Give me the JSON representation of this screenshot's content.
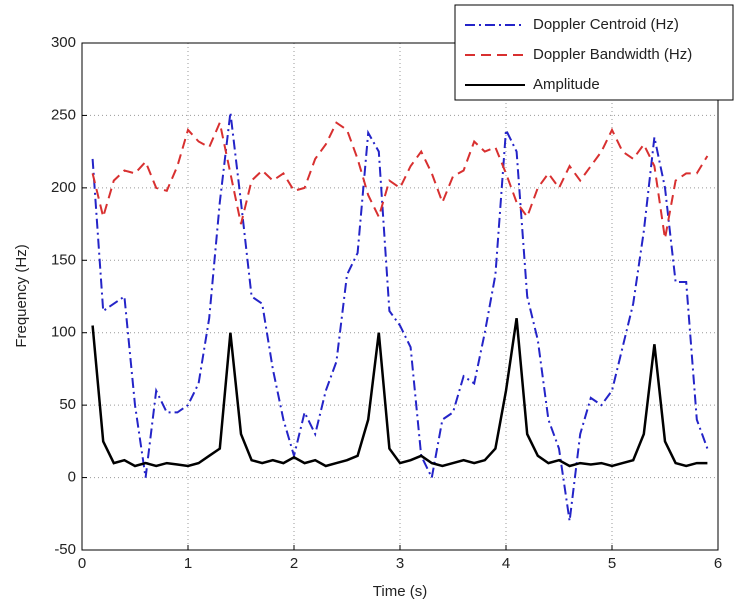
{
  "chart_data": {
    "type": "line",
    "xlabel": "Time (s)",
    "ylabel": "Frequency (Hz)",
    "x": [
      0.1,
      0.2,
      0.3,
      0.4,
      0.5,
      0.6,
      0.7,
      0.8,
      0.9,
      1.0,
      1.1,
      1.2,
      1.3,
      1.4,
      1.5,
      1.6,
      1.7,
      1.8,
      1.9,
      2.0,
      2.1,
      2.2,
      2.3,
      2.4,
      2.5,
      2.6,
      2.7,
      2.8,
      2.9,
      3.0,
      3.1,
      3.2,
      3.3,
      3.4,
      3.5,
      3.6,
      3.7,
      3.8,
      3.9,
      4.0,
      4.1,
      4.2,
      4.3,
      4.4,
      4.5,
      4.6,
      4.7,
      4.8,
      4.9,
      5.0,
      5.1,
      5.2,
      5.3,
      5.4,
      5.5,
      5.6,
      5.7,
      5.8,
      5.9
    ],
    "series": [
      {
        "name": "Doppler Centroid (Hz)",
        "color": "#2424c8",
        "style": "dashdot",
        "values": [
          220,
          115,
          120,
          125,
          50,
          0,
          60,
          45,
          45,
          50,
          65,
          110,
          190,
          252,
          190,
          125,
          120,
          75,
          40,
          15,
          45,
          30,
          60,
          80,
          140,
          155,
          238,
          225,
          115,
          105,
          90,
          15,
          0,
          40,
          45,
          70,
          65,
          100,
          140,
          240,
          225,
          125,
          95,
          40,
          20,
          -30,
          30,
          55,
          50,
          60,
          90,
          120,
          170,
          235,
          200,
          135,
          135,
          40,
          20
        ]
      },
      {
        "name": "Doppler Bandwidth (Hz)",
        "color": "#d83030",
        "style": "dashed",
        "values": [
          210,
          180,
          205,
          212,
          210,
          218,
          200,
          198,
          215,
          240,
          232,
          228,
          245,
          210,
          175,
          205,
          212,
          205,
          210,
          198,
          200,
          220,
          230,
          245,
          240,
          220,
          195,
          180,
          205,
          200,
          215,
          225,
          210,
          190,
          208,
          212,
          232,
          225,
          228,
          210,
          190,
          180,
          200,
          210,
          200,
          215,
          205,
          215,
          225,
          240,
          225,
          220,
          230,
          215,
          165,
          205,
          210,
          210,
          222
        ]
      },
      {
        "name": "Amplitude",
        "color": "#000000",
        "style": "solid",
        "values": [
          105,
          25,
          10,
          12,
          8,
          10,
          8,
          10,
          9,
          8,
          10,
          15,
          20,
          100,
          30,
          12,
          10,
          12,
          10,
          14,
          10,
          12,
          8,
          10,
          12,
          15,
          40,
          100,
          20,
          10,
          12,
          15,
          10,
          8,
          10,
          12,
          10,
          12,
          20,
          60,
          110,
          30,
          15,
          10,
          12,
          8,
          10,
          9,
          10,
          8,
          10,
          12,
          30,
          92,
          25,
          10,
          8,
          10,
          10
        ]
      }
    ],
    "xlim": [
      0,
      6
    ],
    "ylim": [
      -50,
      300
    ],
    "xticks": [
      0,
      1,
      2,
      3,
      4,
      5,
      6
    ],
    "yticks": [
      -50,
      0,
      50,
      100,
      150,
      200,
      250,
      300
    ],
    "grid": true,
    "legend": "upper right"
  }
}
